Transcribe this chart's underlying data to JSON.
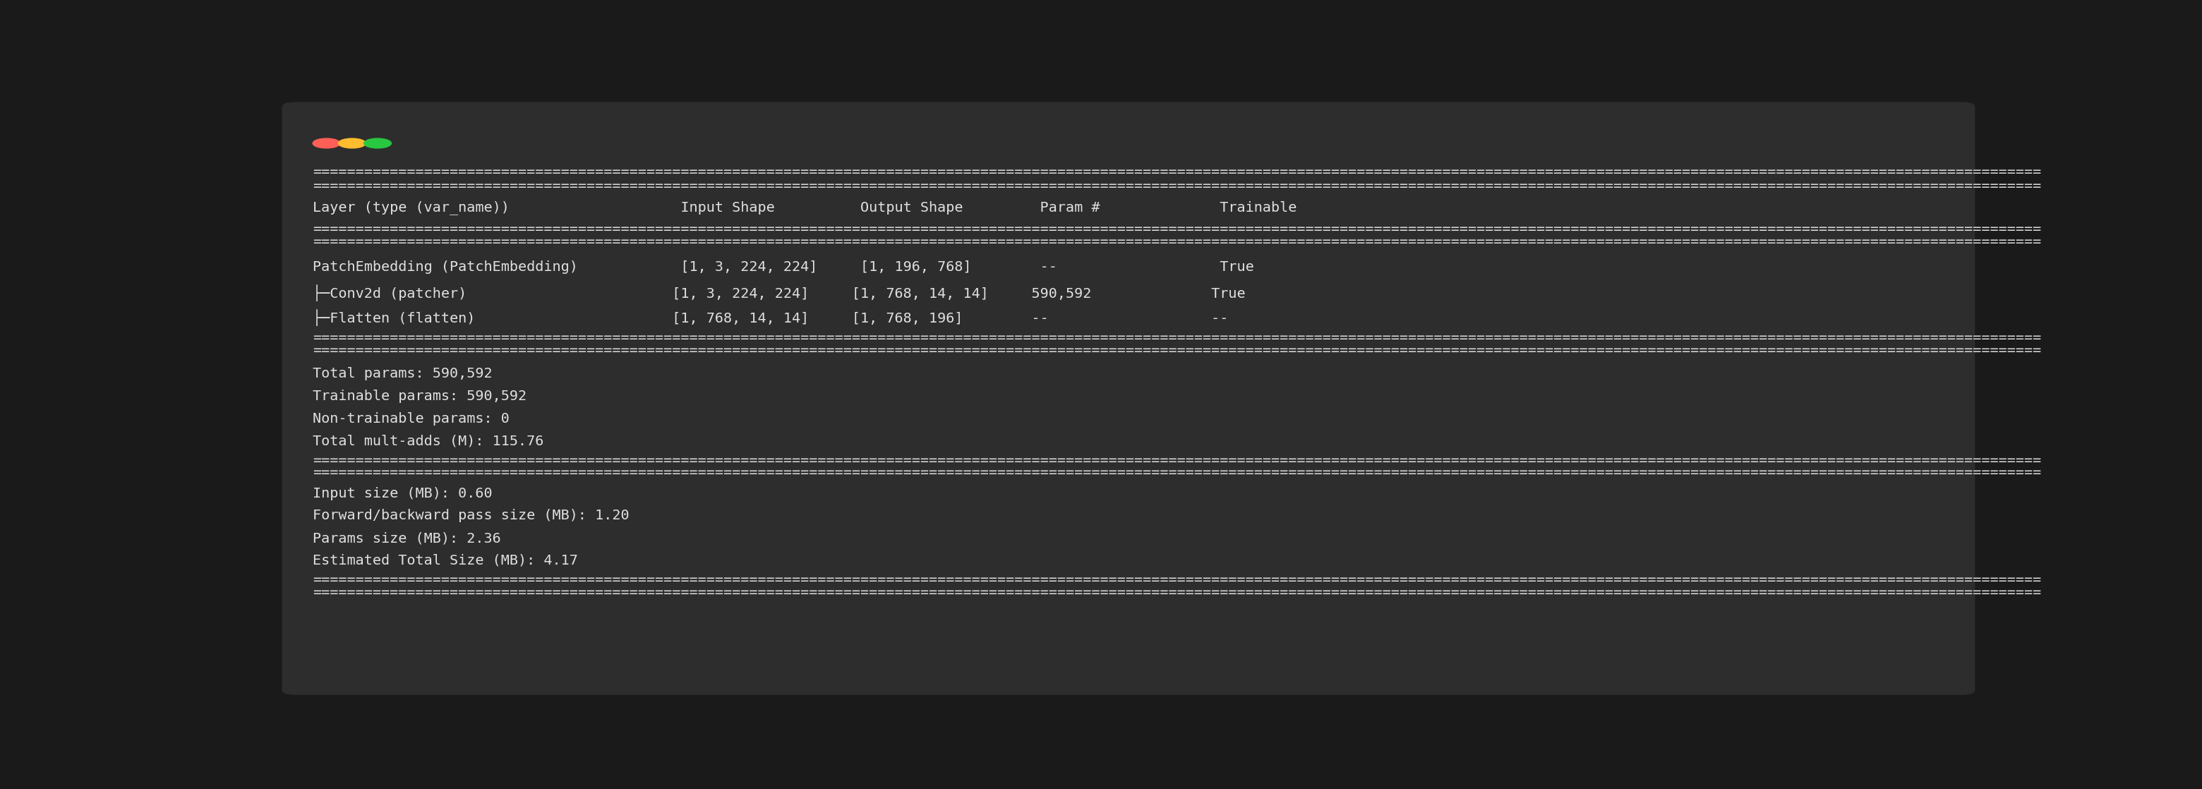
{
  "bg_color": "#1a1a1a",
  "window_bg": "#2d2d2d",
  "text_color": "#e0e0e0",
  "dot_colors": [
    "#ff5f57",
    "#febc2e",
    "#28c840"
  ],
  "font_size": 14.5,
  "sep": "==========================================================================================================================================================================================================",
  "header_line": "Layer (type (var_name))                    Input Shape          Output Shape         Param #              Trainable",
  "row1": "PatchEmbedding (PatchEmbedding)            [1, 3, 224, 224]     [1, 196, 768]        --                   True",
  "row2": "├─Conv2d (patcher)                        [1, 3, 224, 224]     [1, 768, 14, 14]     590,592              True",
  "row3": "├─Flatten (flatten)                       [1, 768, 14, 14]     [1, 768, 196]        --                   --",
  "sum1": "Total params: 590,592",
  "sum2": "Trainable params: 590,592",
  "sum3": "Non-trainable params: 0",
  "sum4": "Total mult-adds (M): 115.76",
  "sz1": "Input size (MB): 0.60",
  "sz2": "Forward/backward pass size (MB): 1.20",
  "sz3": "Params size (MB): 2.36",
  "sz4": "Estimated Total Size (MB): 4.17"
}
